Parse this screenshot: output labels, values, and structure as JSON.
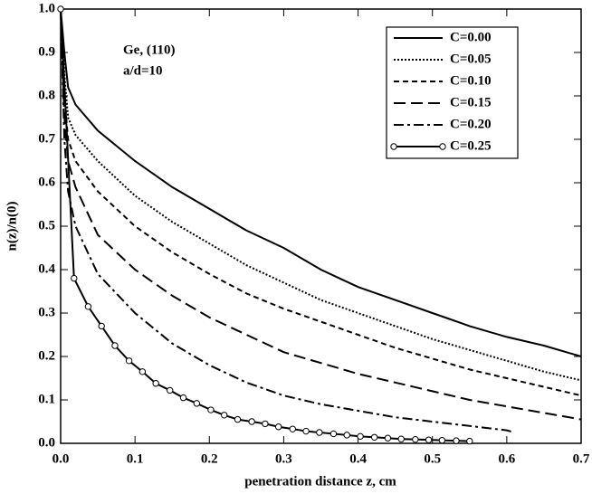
{
  "chart_data": {
    "type": "line",
    "xlabel": "penetration distance  z, cm",
    "ylabel": "n(z)/n(0)",
    "annotations": [
      "Ge, (110)",
      "a/d=10"
    ],
    "xlim": [
      0,
      0.7
    ],
    "ylim": [
      0,
      1
    ],
    "xticks": [
      {
        "value": 0,
        "label": "0.0"
      },
      0.1,
      0.2,
      0.3,
      0.4,
      0.5,
      0.6,
      0.7
    ],
    "yticks": [
      {
        "value": 0,
        "label": "0.0"
      },
      0.1,
      0.2,
      0.3,
      0.4,
      0.5,
      0.6,
      0.7,
      0.8,
      0.9,
      {
        "value": 1,
        "label": "1.0"
      }
    ],
    "legend": "upper right",
    "series": [
      {
        "name": "C=0.00",
        "color": "#000000",
        "dash": "none",
        "markers": false,
        "x": [
          0,
          0.005,
          0.01,
          0.02,
          0.05,
          0.1,
          0.15,
          0.2,
          0.25,
          0.3,
          0.35,
          0.4,
          0.45,
          0.5,
          0.55,
          0.6,
          0.65,
          0.7
        ],
        "values": [
          1.0,
          0.9,
          0.82,
          0.78,
          0.72,
          0.65,
          0.59,
          0.54,
          0.49,
          0.45,
          0.4,
          0.36,
          0.33,
          0.3,
          0.27,
          0.245,
          0.225,
          0.2
        ]
      },
      {
        "name": "C=0.05",
        "color": "#000000",
        "dash": "2 2",
        "markers": false,
        "x": [
          0,
          0.005,
          0.01,
          0.02,
          0.05,
          0.1,
          0.15,
          0.2,
          0.25,
          0.3,
          0.35,
          0.4,
          0.45,
          0.5,
          0.55,
          0.6,
          0.65,
          0.7
        ],
        "values": [
          1.0,
          0.85,
          0.75,
          0.71,
          0.65,
          0.57,
          0.51,
          0.46,
          0.41,
          0.37,
          0.33,
          0.3,
          0.27,
          0.24,
          0.215,
          0.19,
          0.165,
          0.145
        ]
      },
      {
        "name": "C=0.10",
        "color": "#000000",
        "dash": "6 4",
        "markers": false,
        "x": [
          0,
          0.005,
          0.01,
          0.02,
          0.05,
          0.1,
          0.15,
          0.2,
          0.25,
          0.3,
          0.35,
          0.4,
          0.45,
          0.5,
          0.55,
          0.6,
          0.65,
          0.7
        ],
        "values": [
          1.0,
          0.8,
          0.7,
          0.65,
          0.58,
          0.5,
          0.44,
          0.39,
          0.345,
          0.31,
          0.28,
          0.25,
          0.22,
          0.195,
          0.17,
          0.15,
          0.13,
          0.11
        ]
      },
      {
        "name": "C=0.15",
        "color": "#000000",
        "dash": "13 6",
        "markers": false,
        "x": [
          0,
          0.005,
          0.01,
          0.02,
          0.05,
          0.1,
          0.15,
          0.2,
          0.25,
          0.3,
          0.35,
          0.4,
          0.45,
          0.5,
          0.55,
          0.6,
          0.65,
          0.7
        ],
        "values": [
          1.0,
          0.75,
          0.65,
          0.59,
          0.48,
          0.4,
          0.34,
          0.29,
          0.25,
          0.21,
          0.185,
          0.16,
          0.14,
          0.12,
          0.1,
          0.085,
          0.07,
          0.055
        ]
      },
      {
        "name": "C=0.20",
        "color": "#000000",
        "dash": "11 4 3 4",
        "markers": false,
        "x": [
          0,
          0.005,
          0.01,
          0.02,
          0.05,
          0.1,
          0.15,
          0.2,
          0.25,
          0.3,
          0.35,
          0.4,
          0.45,
          0.5,
          0.55,
          0.6,
          0.61
        ],
        "values": [
          1.0,
          0.7,
          0.58,
          0.5,
          0.39,
          0.3,
          0.23,
          0.18,
          0.14,
          0.11,
          0.09,
          0.075,
          0.06,
          0.05,
          0.04,
          0.03,
          0.025
        ]
      },
      {
        "name": "C=0.25",
        "color": "#000000",
        "dash": "none",
        "markers": true,
        "x": [
          0,
          0.018,
          0.037,
          0.055,
          0.073,
          0.092,
          0.11,
          0.128,
          0.147,
          0.165,
          0.183,
          0.202,
          0.22,
          0.238,
          0.257,
          0.275,
          0.293,
          0.312,
          0.33,
          0.348,
          0.367,
          0.385,
          0.403,
          0.422,
          0.44,
          0.458,
          0.477,
          0.495,
          0.513,
          0.532,
          0.55
        ],
        "values": [
          1.0,
          0.38,
          0.315,
          0.27,
          0.225,
          0.19,
          0.165,
          0.138,
          0.122,
          0.105,
          0.092,
          0.077,
          0.065,
          0.055,
          0.05,
          0.045,
          0.038,
          0.033,
          0.028,
          0.025,
          0.022,
          0.019,
          0.016,
          0.014,
          0.012,
          0.01,
          0.009,
          0.008,
          0.007,
          0.006,
          0.005
        ]
      }
    ]
  }
}
